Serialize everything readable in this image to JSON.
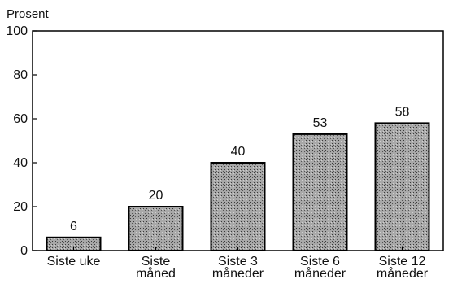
{
  "chart_data": {
    "type": "bar",
    "title": "",
    "ylabel": "Prosent",
    "xlabel": "",
    "ylim": [
      0,
      100
    ],
    "yticks": [
      0,
      20,
      40,
      60,
      80,
      100
    ],
    "grid": false,
    "categories": [
      [
        "Siste uke"
      ],
      [
        "Siste",
        "måned"
      ],
      [
        "Siste 3",
        "måneder"
      ],
      [
        "Siste 6",
        "måneder"
      ],
      [
        "Siste 12",
        "måneder"
      ]
    ],
    "values": [
      6,
      20,
      40,
      53,
      58
    ],
    "data_labels": [
      "6",
      "20",
      "40",
      "53",
      "58"
    ],
    "colors": {
      "bar_fill": "#9a9a9a",
      "bar_stroke": "#000000",
      "axis": "#000000"
    }
  }
}
